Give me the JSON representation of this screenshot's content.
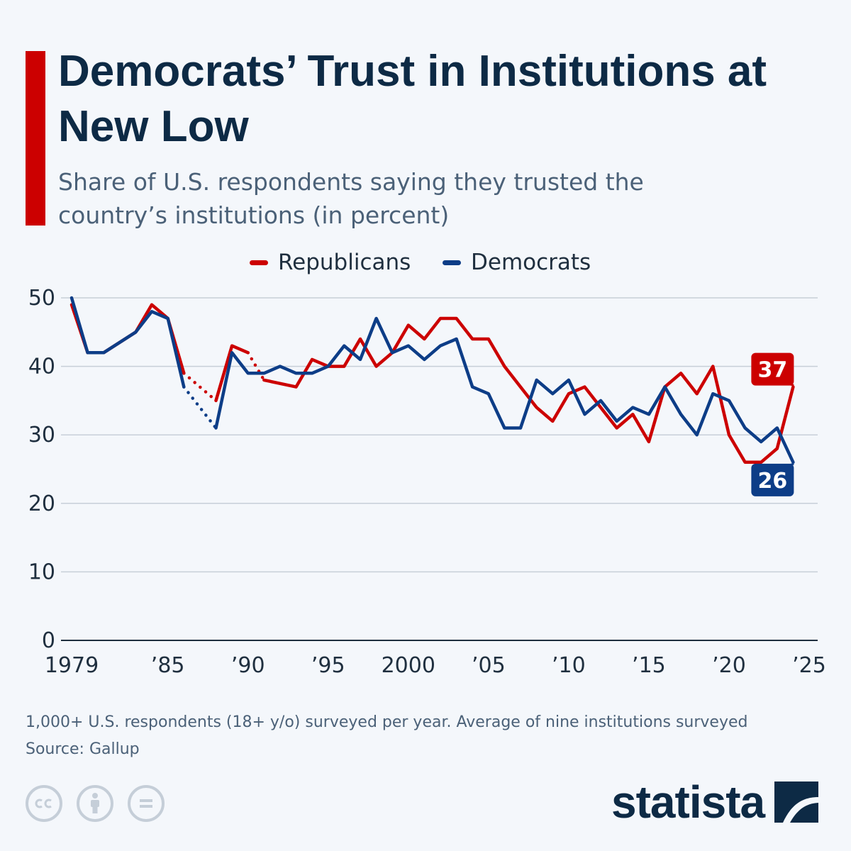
{
  "header": {
    "title": "Democrats’ Trust in Institutions at New Low",
    "subtitle": "Share of U.S. respondents saying they trusted the country’s institutions (in percent)"
  },
  "legend": [
    {
      "label": "Republicans",
      "color": "#cc0000"
    },
    {
      "label": "Democrats",
      "color": "#0d3d87"
    }
  ],
  "chart_data": {
    "type": "line",
    "title": "Democrats’ Trust in Institutions at New Low",
    "subtitle": "Share of U.S. respondents saying they trusted the country’s institutions (in percent)",
    "xlabel": "",
    "ylabel": "",
    "xlim": [
      1979,
      2025
    ],
    "ylim": [
      0,
      50
    ],
    "y_ticks": [
      0,
      10,
      20,
      30,
      40,
      50
    ],
    "x_ticks": [
      1979,
      1985,
      1990,
      1995,
      2000,
      2005,
      2010,
      2015,
      2020,
      2025
    ],
    "x_tick_labels": [
      "1979",
      "’85",
      "’90",
      "’95",
      "2000",
      "’05",
      "’10",
      "’15",
      "’20",
      "’25"
    ],
    "grid": true,
    "legend_position": "top",
    "gap_style": "dotted",
    "series": [
      {
        "name": "Republicans",
        "color": "#cc0000",
        "points": [
          [
            1979,
            49
          ],
          [
            1980,
            42
          ],
          [
            1981,
            42
          ],
          [
            1983,
            45
          ],
          [
            1984,
            49
          ],
          [
            1985,
            47
          ],
          [
            1986,
            39
          ],
          [
            1988,
            35
          ],
          [
            1989,
            43
          ],
          [
            1990,
            42
          ],
          [
            1991,
            38
          ],
          [
            1993,
            37
          ],
          [
            1994,
            41
          ],
          [
            1995,
            40
          ],
          [
            1996,
            40
          ],
          [
            1997,
            44
          ],
          [
            1998,
            40
          ],
          [
            1999,
            42
          ],
          [
            2000,
            46
          ],
          [
            2001,
            44
          ],
          [
            2002,
            47
          ],
          [
            2003,
            47
          ],
          [
            2004,
            44
          ],
          [
            2005,
            44
          ],
          [
            2006,
            40
          ],
          [
            2007,
            37
          ],
          [
            2008,
            34
          ],
          [
            2009,
            32
          ],
          [
            2010,
            36
          ],
          [
            2011,
            37
          ],
          [
            2012,
            34
          ],
          [
            2013,
            31
          ],
          [
            2014,
            33
          ],
          [
            2015,
            29
          ],
          [
            2016,
            37
          ],
          [
            2017,
            39
          ],
          [
            2018,
            36
          ],
          [
            2019,
            40
          ],
          [
            2020,
            30
          ],
          [
            2021,
            26
          ],
          [
            2022,
            26
          ],
          [
            2023,
            28
          ],
          [
            2024,
            37
          ]
        ],
        "dotted_gaps": [
          [
            1986,
            1988
          ],
          [
            1990,
            1991
          ]
        ],
        "end_label": "37"
      },
      {
        "name": "Democrats",
        "color": "#0d3d87",
        "points": [
          [
            1979,
            50
          ],
          [
            1980,
            42
          ],
          [
            1981,
            42
          ],
          [
            1983,
            45
          ],
          [
            1984,
            48
          ],
          [
            1985,
            47
          ],
          [
            1986,
            37
          ],
          [
            1988,
            31
          ],
          [
            1989,
            42
          ],
          [
            1990,
            39
          ],
          [
            1991,
            39
          ],
          [
            1992,
            40
          ],
          [
            1993,
            39
          ],
          [
            1994,
            39
          ],
          [
            1995,
            40
          ],
          [
            1996,
            43
          ],
          [
            1997,
            41
          ],
          [
            1998,
            47
          ],
          [
            1999,
            42
          ],
          [
            2000,
            43
          ],
          [
            2001,
            41
          ],
          [
            2002,
            43
          ],
          [
            2003,
            44
          ],
          [
            2004,
            37
          ],
          [
            2005,
            36
          ],
          [
            2006,
            31
          ],
          [
            2007,
            31
          ],
          [
            2008,
            38
          ],
          [
            2009,
            36
          ],
          [
            2010,
            38
          ],
          [
            2011,
            33
          ],
          [
            2012,
            35
          ],
          [
            2013,
            32
          ],
          [
            2014,
            34
          ],
          [
            2015,
            33
          ],
          [
            2016,
            37
          ],
          [
            2017,
            33
          ],
          [
            2018,
            30
          ],
          [
            2019,
            36
          ],
          [
            2020,
            35
          ],
          [
            2021,
            31
          ],
          [
            2022,
            29
          ],
          [
            2023,
            31
          ],
          [
            2024,
            26
          ]
        ],
        "dotted_gaps": [
          [
            1986,
            1988
          ],
          [
            1990,
            1992
          ]
        ],
        "end_label": "26"
      }
    ]
  },
  "footer": {
    "note": "1,000+ U.S. respondents (18+ y/o) surveyed per year. Average of nine institutions surveyed",
    "source": "Source: Gallup"
  },
  "license_icons": [
    "cc-icon",
    "attribution-icon",
    "no-derivatives-icon"
  ],
  "brand": {
    "name": "statista",
    "color": "#0d2a45"
  }
}
